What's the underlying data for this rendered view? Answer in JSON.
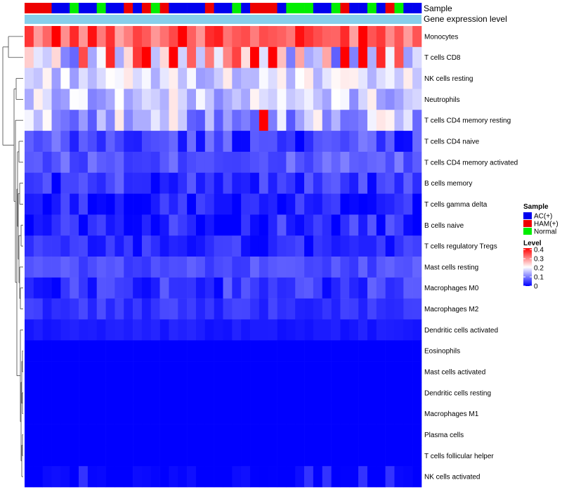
{
  "chart_data": {
    "type": "heatmap",
    "annotations": {
      "sample_track_label": "Sample",
      "expression_track_label": "Gene expression level",
      "sample_groups": [
        "HAM(+)",
        "HAM(+)",
        "HAM(+)",
        "AC(+)",
        "AC(+)",
        "Normal",
        "AC(+)",
        "AC(+)",
        "Normal",
        "AC(+)",
        "AC(+)",
        "HAM(+)",
        "AC(+)",
        "HAM(+)",
        "Normal",
        "HAM(+)",
        "AC(+)",
        "AC(+)",
        "AC(+)",
        "AC(+)",
        "HAM(+)",
        "AC(+)",
        "AC(+)",
        "Normal",
        "AC(+)",
        "HAM(+)",
        "HAM(+)",
        "HAM(+)",
        "AC(+)",
        "Normal",
        "Normal",
        "Normal",
        "AC(+)",
        "AC(+)",
        "Normal",
        "HAM(+)",
        "AC(+)",
        "AC(+)",
        "Normal",
        "AC(+)",
        "HAM(+)",
        "Normal",
        "AC(+)",
        "AC(+)"
      ]
    },
    "legend": {
      "sample_title": "Sample",
      "sample_entries": [
        {
          "label": "AC(+)",
          "color": "#0000ee"
        },
        {
          "label": "HAM(+)",
          "color": "#ee0000"
        },
        {
          "label": "Normal",
          "color": "#00ee00"
        }
      ],
      "level_title": "Level",
      "level_ticks": [
        "0.4",
        "0.3",
        "0.2",
        "0.1",
        "0"
      ],
      "level_range": [
        0,
        0.4
      ],
      "palette": {
        "low": "#0000ff",
        "mid": "#ffffff",
        "high": "#ff0000"
      },
      "expression_track_color": "#87ceeb"
    },
    "rows": [
      {
        "name": "Monocytes",
        "base": 0.33,
        "amp": 0.06
      },
      {
        "name": "T cells CD8",
        "base": 0.22,
        "amp": 0.15
      },
      {
        "name": "NK cells resting",
        "base": 0.17,
        "amp": 0.05
      },
      {
        "name": "Neutrophils",
        "base": 0.16,
        "amp": 0.06
      },
      {
        "name": "T cells CD4 memory resting",
        "base": 0.14,
        "amp": 0.08
      },
      {
        "name": "T cells CD4 naive",
        "base": 0.05,
        "amp": 0.05
      },
      {
        "name": "T cells CD4 memory activated",
        "base": 0.07,
        "amp": 0.03
      },
      {
        "name": "B cells memory",
        "base": 0.04,
        "amp": 0.04
      },
      {
        "name": "T cells gamma delta",
        "base": 0.02,
        "amp": 0.04
      },
      {
        "name": "B cells naive",
        "base": 0.03,
        "amp": 0.04
      },
      {
        "name": "T cells regulatory  Tregs",
        "base": 0.03,
        "amp": 0.03
      },
      {
        "name": "Mast cells resting",
        "base": 0.06,
        "amp": 0.02
      },
      {
        "name": "Macrophages M0",
        "base": 0.04,
        "amp": 0.04
      },
      {
        "name": "Macrophages M2",
        "base": 0.04,
        "amp": 0.02
      },
      {
        "name": "Dendritic cells activated",
        "base": 0.02,
        "amp": 0.01
      },
      {
        "name": "Eosinophils",
        "base": 0.0,
        "amp": 0.0
      },
      {
        "name": "Mast cells activated",
        "base": 0.0,
        "amp": 0.0
      },
      {
        "name": "Dendritic cells resting",
        "base": 0.0,
        "amp": 0.0
      },
      {
        "name": "Macrophages M1",
        "base": 0.0,
        "amp": 0.0
      },
      {
        "name": "Plasma cells",
        "base": 0.0,
        "amp": 0.0
      },
      {
        "name": "T cells follicular helper",
        "base": 0.0,
        "amp": 0.0
      },
      {
        "name": "NK cells activated",
        "base": 0.003,
        "amp": 0.01
      }
    ],
    "highlights": [
      {
        "row": "T cells CD8",
        "columns": [
          13,
          16,
          25,
          27,
          35,
          37
        ],
        "value": 0.4
      },
      {
        "row": "T cells CD4 memory resting",
        "columns": [
          26
        ],
        "value": 0.4
      },
      {
        "row": "Monocytes",
        "columns": [
          3,
          17,
          37
        ],
        "value": 0.4
      },
      {
        "row": "NK cells activated",
        "columns": [
          6,
          31,
          33,
          37,
          40
        ],
        "value": 0.04
      }
    ]
  }
}
